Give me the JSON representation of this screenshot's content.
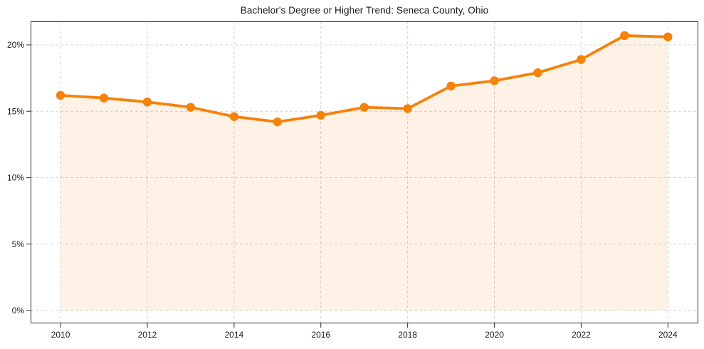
{
  "chart_data": {
    "type": "line",
    "title": "Bachelor's Degree or Higher Trend: Seneca County, Ohio",
    "xlabel": "",
    "ylabel": "",
    "x": [
      2010,
      2011,
      2012,
      2013,
      2014,
      2015,
      2016,
      2017,
      2018,
      2019,
      2020,
      2021,
      2022,
      2023,
      2024
    ],
    "values": [
      16.2,
      16.0,
      15.7,
      15.3,
      14.6,
      14.2,
      14.7,
      15.3,
      15.2,
      16.9,
      17.3,
      17.9,
      18.9,
      20.7,
      20.6
    ],
    "series_name": "Bachelor's Degree or Higher",
    "unit": "%",
    "xticks": [
      2010,
      2012,
      2014,
      2016,
      2018,
      2020,
      2022,
      2024
    ],
    "xtick_labels": [
      "2010",
      "2012",
      "2014",
      "2016",
      "2018",
      "2020",
      "2022",
      "2024"
    ],
    "yticks": [
      0,
      5,
      10,
      15,
      20
    ],
    "ytick_labels": [
      "0%",
      "5%",
      "10%",
      "15%",
      "20%"
    ],
    "xlim": [
      2009.31,
      2024.7
    ],
    "ylim": [
      -0.97,
      21.77
    ],
    "grid": true,
    "legend": false,
    "marker": "circle",
    "colors": {
      "line": "#f5820a",
      "area_fill": "rgba(245,130,10,0.10)",
      "grid": "#d4d4d4",
      "spine": "#2a2a2a",
      "tick_text": "#1a1a1a",
      "background": "#ffffff"
    }
  }
}
